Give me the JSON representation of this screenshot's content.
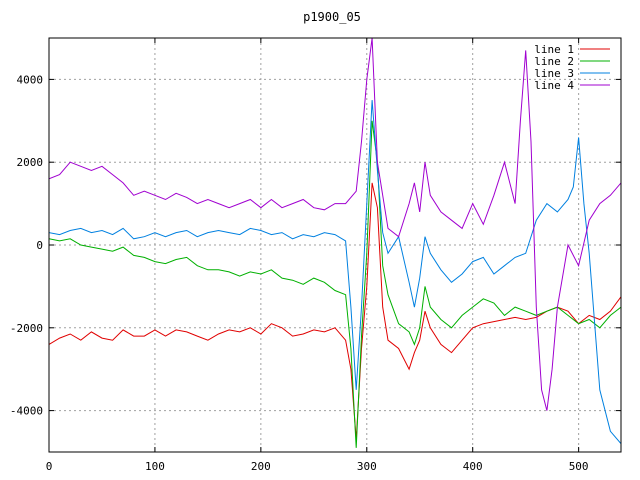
{
  "chart_data": {
    "type": "line",
    "title": "p1900_05",
    "xlabel": "",
    "ylabel": "",
    "xlim": [
      0,
      540
    ],
    "ylim": [
      -5000,
      5000
    ],
    "x_ticks": [
      0,
      100,
      200,
      300,
      400,
      500
    ],
    "y_ticks": [
      -4000,
      -2000,
      0,
      2000,
      4000
    ],
    "grid": true,
    "legend_position": "top-right",
    "series": [
      {
        "name": "line 1",
        "color": "#e00000",
        "points": [
          [
            0,
            -2400
          ],
          [
            10,
            -2250
          ],
          [
            20,
            -2150
          ],
          [
            30,
            -2300
          ],
          [
            40,
            -2100
          ],
          [
            50,
            -2250
          ],
          [
            60,
            -2300
          ],
          [
            70,
            -2050
          ],
          [
            80,
            -2200
          ],
          [
            90,
            -2200
          ],
          [
            100,
            -2050
          ],
          [
            110,
            -2200
          ],
          [
            120,
            -2050
          ],
          [
            130,
            -2100
          ],
          [
            140,
            -2200
          ],
          [
            150,
            -2300
          ],
          [
            160,
            -2150
          ],
          [
            170,
            -2050
          ],
          [
            180,
            -2100
          ],
          [
            190,
            -2000
          ],
          [
            200,
            -2150
          ],
          [
            210,
            -1900
          ],
          [
            220,
            -2000
          ],
          [
            230,
            -2200
          ],
          [
            240,
            -2150
          ],
          [
            250,
            -2050
          ],
          [
            260,
            -2100
          ],
          [
            270,
            -2000
          ],
          [
            280,
            -2300
          ],
          [
            285,
            -3000
          ],
          [
            290,
            -4700
          ],
          [
            295,
            -2500
          ],
          [
            300,
            -1000
          ],
          [
            305,
            1500
          ],
          [
            310,
            900
          ],
          [
            315,
            -1500
          ],
          [
            320,
            -2300
          ],
          [
            330,
            -2500
          ],
          [
            340,
            -3000
          ],
          [
            345,
            -2600
          ],
          [
            350,
            -2300
          ],
          [
            355,
            -1600
          ],
          [
            360,
            -2000
          ],
          [
            370,
            -2400
          ],
          [
            380,
            -2600
          ],
          [
            390,
            -2300
          ],
          [
            400,
            -2000
          ],
          [
            410,
            -1900
          ],
          [
            420,
            -1850
          ],
          [
            430,
            -1800
          ],
          [
            440,
            -1750
          ],
          [
            450,
            -1800
          ],
          [
            460,
            -1750
          ],
          [
            470,
            -1600
          ],
          [
            480,
            -1500
          ],
          [
            490,
            -1600
          ],
          [
            500,
            -1900
          ],
          [
            510,
            -1700
          ],
          [
            520,
            -1800
          ],
          [
            530,
            -1600
          ],
          [
            540,
            -1250
          ]
        ]
      },
      {
        "name": "line 2",
        "color": "#00b000",
        "points": [
          [
            0,
            150
          ],
          [
            10,
            100
          ],
          [
            20,
            150
          ],
          [
            30,
            0
          ],
          [
            40,
            -50
          ],
          [
            50,
            -100
          ],
          [
            60,
            -150
          ],
          [
            70,
            -50
          ],
          [
            80,
            -250
          ],
          [
            90,
            -300
          ],
          [
            100,
            -400
          ],
          [
            110,
            -450
          ],
          [
            120,
            -350
          ],
          [
            130,
            -300
          ],
          [
            140,
            -500
          ],
          [
            150,
            -600
          ],
          [
            160,
            -600
          ],
          [
            170,
            -650
          ],
          [
            180,
            -750
          ],
          [
            190,
            -650
          ],
          [
            200,
            -700
          ],
          [
            210,
            -600
          ],
          [
            220,
            -800
          ],
          [
            230,
            -850
          ],
          [
            240,
            -950
          ],
          [
            250,
            -800
          ],
          [
            260,
            -900
          ],
          [
            270,
            -1100
          ],
          [
            280,
            -1200
          ],
          [
            285,
            -2500
          ],
          [
            290,
            -4900
          ],
          [
            295,
            -2200
          ],
          [
            300,
            -200
          ],
          [
            305,
            3000
          ],
          [
            310,
            2000
          ],
          [
            315,
            -500
          ],
          [
            320,
            -1200
          ],
          [
            330,
            -1900
          ],
          [
            340,
            -2100
          ],
          [
            345,
            -2400
          ],
          [
            350,
            -2000
          ],
          [
            355,
            -1000
          ],
          [
            360,
            -1500
          ],
          [
            370,
            -1800
          ],
          [
            380,
            -2000
          ],
          [
            390,
            -1700
          ],
          [
            400,
            -1500
          ],
          [
            410,
            -1300
          ],
          [
            420,
            -1400
          ],
          [
            430,
            -1700
          ],
          [
            440,
            -1500
          ],
          [
            450,
            -1600
          ],
          [
            460,
            -1700
          ],
          [
            470,
            -1600
          ],
          [
            480,
            -1500
          ],
          [
            490,
            -1700
          ],
          [
            500,
            -1900
          ],
          [
            510,
            -1800
          ],
          [
            520,
            -2000
          ],
          [
            530,
            -1700
          ],
          [
            540,
            -1500
          ]
        ]
      },
      {
        "name": "line 3",
        "color": "#0080e0",
        "points": [
          [
            0,
            300
          ],
          [
            10,
            250
          ],
          [
            20,
            350
          ],
          [
            30,
            400
          ],
          [
            40,
            300
          ],
          [
            50,
            350
          ],
          [
            60,
            250
          ],
          [
            70,
            400
          ],
          [
            80,
            150
          ],
          [
            90,
            200
          ],
          [
            100,
            300
          ],
          [
            110,
            200
          ],
          [
            120,
            300
          ],
          [
            130,
            350
          ],
          [
            140,
            200
          ],
          [
            150,
            300
          ],
          [
            160,
            350
          ],
          [
            170,
            300
          ],
          [
            180,
            250
          ],
          [
            190,
            400
          ],
          [
            200,
            350
          ],
          [
            210,
            250
          ],
          [
            220,
            300
          ],
          [
            230,
            150
          ],
          [
            240,
            250
          ],
          [
            250,
            200
          ],
          [
            260,
            300
          ],
          [
            270,
            250
          ],
          [
            280,
            100
          ],
          [
            285,
            -1500
          ],
          [
            290,
            -3500
          ],
          [
            295,
            -1500
          ],
          [
            300,
            1000
          ],
          [
            305,
            3500
          ],
          [
            310,
            1800
          ],
          [
            315,
            300
          ],
          [
            320,
            -200
          ],
          [
            330,
            200
          ],
          [
            340,
            -900
          ],
          [
            345,
            -1500
          ],
          [
            350,
            -800
          ],
          [
            355,
            200
          ],
          [
            360,
            -200
          ],
          [
            370,
            -600
          ],
          [
            380,
            -900
          ],
          [
            390,
            -700
          ],
          [
            400,
            -400
          ],
          [
            410,
            -300
          ],
          [
            420,
            -700
          ],
          [
            430,
            -500
          ],
          [
            440,
            -300
          ],
          [
            450,
            -200
          ],
          [
            460,
            600
          ],
          [
            470,
            1000
          ],
          [
            480,
            800
          ],
          [
            490,
            1100
          ],
          [
            495,
            1400
          ],
          [
            500,
            2600
          ],
          [
            505,
            1000
          ],
          [
            510,
            -200
          ],
          [
            520,
            -3500
          ],
          [
            530,
            -4500
          ],
          [
            540,
            -4800
          ]
        ]
      },
      {
        "name": "line 4",
        "color": "#a000d0",
        "points": [
          [
            0,
            1600
          ],
          [
            10,
            1700
          ],
          [
            20,
            2000
          ],
          [
            30,
            1900
          ],
          [
            40,
            1800
          ],
          [
            50,
            1900
          ],
          [
            60,
            1700
          ],
          [
            70,
            1500
          ],
          [
            80,
            1200
          ],
          [
            90,
            1300
          ],
          [
            100,
            1200
          ],
          [
            110,
            1100
          ],
          [
            120,
            1250
          ],
          [
            130,
            1150
          ],
          [
            140,
            1000
          ],
          [
            150,
            1100
          ],
          [
            160,
            1000
          ],
          [
            170,
            900
          ],
          [
            180,
            1000
          ],
          [
            190,
            1100
          ],
          [
            200,
            900
          ],
          [
            210,
            1100
          ],
          [
            220,
            900
          ],
          [
            230,
            1000
          ],
          [
            240,
            1100
          ],
          [
            250,
            900
          ],
          [
            260,
            850
          ],
          [
            270,
            1000
          ],
          [
            280,
            1000
          ],
          [
            290,
            1300
          ],
          [
            295,
            2500
          ],
          [
            300,
            4000
          ],
          [
            305,
            5000
          ],
          [
            310,
            2000
          ],
          [
            315,
            1200
          ],
          [
            320,
            400
          ],
          [
            330,
            200
          ],
          [
            340,
            1000
          ],
          [
            345,
            1500
          ],
          [
            350,
            800
          ],
          [
            355,
            2000
          ],
          [
            360,
            1200
          ],
          [
            370,
            800
          ],
          [
            380,
            600
          ],
          [
            390,
            400
          ],
          [
            400,
            1000
          ],
          [
            410,
            500
          ],
          [
            420,
            1200
          ],
          [
            430,
            2000
          ],
          [
            440,
            1000
          ],
          [
            445,
            3000
          ],
          [
            450,
            4700
          ],
          [
            455,
            2500
          ],
          [
            460,
            -1500
          ],
          [
            465,
            -3500
          ],
          [
            470,
            -4000
          ],
          [
            475,
            -3000
          ],
          [
            480,
            -1500
          ],
          [
            490,
            0
          ],
          [
            500,
            -500
          ],
          [
            510,
            600
          ],
          [
            520,
            1000
          ],
          [
            530,
            1200
          ],
          [
            540,
            1500
          ]
        ]
      }
    ]
  }
}
